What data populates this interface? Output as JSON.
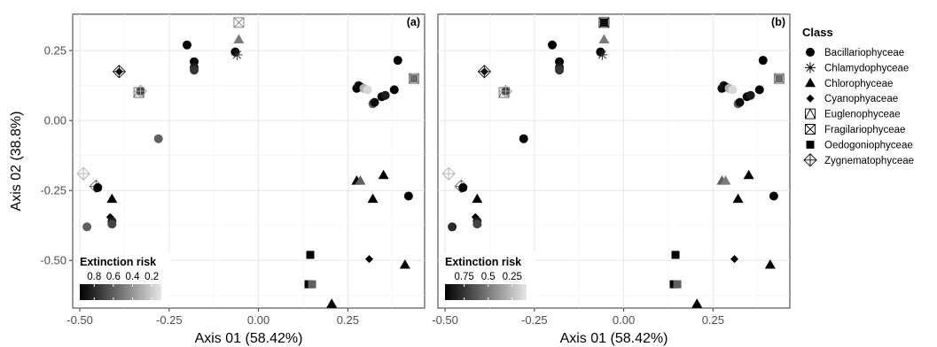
{
  "chart_data": [
    {
      "type": "scatter",
      "panel_label": "(a)",
      "xlabel": "Axis 01 (58.42%)",
      "ylabel": "Axis 02 (38.8%)",
      "xlim": [
        -0.52,
        0.465
      ],
      "ylim": [
        -0.67,
        0.38
      ],
      "x_ticks": [
        -0.5,
        -0.25,
        0.0,
        0.25
      ],
      "x_tick_labels": [
        "-0.50",
        "-0.25",
        "0.00",
        "0.25"
      ],
      "y_ticks": [
        0.25,
        0.0,
        -0.25,
        -0.5
      ],
      "y_tick_labels": [
        "0.25",
        "0.00",
        "-0.25",
        "-0.50"
      ],
      "grid": true,
      "colorbar": {
        "title": "Extinction risk",
        "tick_values": [
          0.8,
          0.6,
          0.4,
          0.2
        ],
        "tick_labels": [
          "0.8",
          "0.6",
          "0.4",
          "0.2"
        ],
        "range": [
          0.1,
          0.95
        ],
        "placement": "bottom-left"
      },
      "points": [
        {
          "x": -0.2,
          "y": 0.27,
          "shape": "circle",
          "risk": 0.95
        },
        {
          "x": -0.18,
          "y": 0.21,
          "shape": "circle",
          "risk": 0.95
        },
        {
          "x": -0.18,
          "y": 0.19,
          "shape": "circle",
          "risk": 0.85
        },
        {
          "x": -0.18,
          "y": 0.18,
          "shape": "circle",
          "risk": 0.75
        },
        {
          "x": -0.065,
          "y": 0.245,
          "shape": "circle",
          "risk": 0.95
        },
        {
          "x": -0.06,
          "y": 0.235,
          "shape": "asterisk",
          "risk": 0.8
        },
        {
          "x": -0.055,
          "y": 0.29,
          "shape": "triangle",
          "risk": 0.5
        },
        {
          "x": -0.055,
          "y": 0.35,
          "shape": "fragsquare",
          "risk": 0.5
        },
        {
          "x": -0.39,
          "y": 0.175,
          "shape": "diamond",
          "risk": 0.9
        },
        {
          "x": -0.39,
          "y": 0.175,
          "shape": "zygdiamond",
          "risk": 0.9
        },
        {
          "x": -0.335,
          "y": 0.1,
          "shape": "eugtriangle",
          "risk": 0.6
        },
        {
          "x": -0.33,
          "y": 0.105,
          "shape": "square",
          "risk": 0.7
        },
        {
          "x": -0.33,
          "y": 0.105,
          "shape": "zygdiamond",
          "risk": 0.3
        },
        {
          "x": -0.28,
          "y": -0.065,
          "shape": "circle",
          "risk": 0.6
        },
        {
          "x": -0.49,
          "y": -0.19,
          "shape": "zygdiamond",
          "risk": 0.3
        },
        {
          "x": -0.455,
          "y": -0.235,
          "shape": "zygdiamond",
          "risk": 0.6
        },
        {
          "x": -0.45,
          "y": -0.24,
          "shape": "circle",
          "risk": 0.95
        },
        {
          "x": -0.48,
          "y": -0.38,
          "shape": "circle",
          "risk": 0.6
        },
        {
          "x": -0.41,
          "y": -0.28,
          "shape": "triangle",
          "risk": 0.95
        },
        {
          "x": -0.415,
          "y": -0.345,
          "shape": "diamond",
          "risk": 0.95
        },
        {
          "x": -0.41,
          "y": -0.36,
          "shape": "circle",
          "risk": 0.85
        },
        {
          "x": -0.41,
          "y": -0.37,
          "shape": "circle",
          "risk": 0.7
        },
        {
          "x": 0.275,
          "y": 0.115,
          "shape": "circle",
          "risk": 0.95
        },
        {
          "x": 0.28,
          "y": 0.125,
          "shape": "circle",
          "risk": 0.85
        },
        {
          "x": 0.285,
          "y": 0.12,
          "shape": "circle",
          "risk": 0.95
        },
        {
          "x": 0.295,
          "y": 0.115,
          "shape": "circle",
          "risk": 0.3
        },
        {
          "x": 0.305,
          "y": 0.11,
          "shape": "circle",
          "risk": 0.15
        },
        {
          "x": 0.32,
          "y": 0.06,
          "shape": "circle",
          "risk": 0.6
        },
        {
          "x": 0.325,
          "y": 0.065,
          "shape": "circle",
          "risk": 0.9
        },
        {
          "x": 0.345,
          "y": 0.085,
          "shape": "circle",
          "risk": 0.95
        },
        {
          "x": 0.355,
          "y": 0.09,
          "shape": "circle",
          "risk": 0.85
        },
        {
          "x": 0.38,
          "y": 0.11,
          "shape": "circle",
          "risk": 0.95
        },
        {
          "x": 0.39,
          "y": 0.215,
          "shape": "circle",
          "risk": 0.95
        },
        {
          "x": 0.435,
          "y": 0.15,
          "shape": "square",
          "risk": 0.55
        },
        {
          "x": 0.435,
          "y": 0.15,
          "shape": "fragsquare",
          "risk": 0.55
        },
        {
          "x": 0.275,
          "y": -0.215,
          "shape": "triangle",
          "risk": 0.95
        },
        {
          "x": 0.285,
          "y": -0.215,
          "shape": "triangle",
          "risk": 0.6
        },
        {
          "x": 0.32,
          "y": -0.28,
          "shape": "triangle",
          "risk": 0.95
        },
        {
          "x": 0.35,
          "y": -0.195,
          "shape": "triangle",
          "risk": 0.95
        },
        {
          "x": 0.42,
          "y": -0.27,
          "shape": "circle",
          "risk": 0.95
        },
        {
          "x": 0.31,
          "y": -0.495,
          "shape": "diamond",
          "risk": 0.95
        },
        {
          "x": 0.41,
          "y": -0.515,
          "shape": "triangle",
          "risk": 0.95
        },
        {
          "x": 0.145,
          "y": -0.48,
          "shape": "square",
          "risk": 0.95
        },
        {
          "x": 0.14,
          "y": -0.585,
          "shape": "square",
          "risk": 0.95
        },
        {
          "x": 0.15,
          "y": -0.585,
          "shape": "square",
          "risk": 0.6
        },
        {
          "x": 0.205,
          "y": -0.655,
          "shape": "triangle",
          "risk": 0.95
        }
      ]
    },
    {
      "type": "scatter",
      "panel_label": "(b)",
      "xlabel": "Axis 01 (58.42%)",
      "ylabel": "",
      "xlim": [
        -0.52,
        0.465
      ],
      "ylim": [
        -0.67,
        0.38
      ],
      "x_ticks": [
        -0.5,
        -0.25,
        0.0,
        0.25
      ],
      "x_tick_labels": [
        "-0.50",
        "-0.25",
        "0.00",
        "0.25"
      ],
      "y_ticks": [],
      "y_tick_labels": [],
      "grid": true,
      "colorbar": {
        "title": "Extinction risk",
        "tick_values": [
          0.75,
          0.5,
          0.25
        ],
        "tick_labels": [
          "0.75",
          "0.5",
          "0.25"
        ],
        "range": [
          0.1,
          0.95
        ],
        "placement": "bottom-left"
      },
      "points": [
        {
          "x": -0.2,
          "y": 0.27,
          "shape": "circle",
          "risk": 0.95
        },
        {
          "x": -0.18,
          "y": 0.21,
          "shape": "circle",
          "risk": 0.95
        },
        {
          "x": -0.18,
          "y": 0.19,
          "shape": "circle",
          "risk": 0.85
        },
        {
          "x": -0.18,
          "y": 0.18,
          "shape": "circle",
          "risk": 0.75
        },
        {
          "x": -0.065,
          "y": 0.245,
          "shape": "circle",
          "risk": 0.95
        },
        {
          "x": -0.06,
          "y": 0.235,
          "shape": "asterisk",
          "risk": 0.8
        },
        {
          "x": -0.055,
          "y": 0.29,
          "shape": "triangle",
          "risk": 0.5
        },
        {
          "x": -0.055,
          "y": 0.35,
          "shape": "square",
          "risk": 0.9
        },
        {
          "x": -0.055,
          "y": 0.35,
          "shape": "fragsquare",
          "risk": 0.9
        },
        {
          "x": -0.39,
          "y": 0.175,
          "shape": "diamond",
          "risk": 0.9
        },
        {
          "x": -0.39,
          "y": 0.175,
          "shape": "zygdiamond",
          "risk": 0.9
        },
        {
          "x": -0.335,
          "y": 0.1,
          "shape": "eugtriangle",
          "risk": 0.6
        },
        {
          "x": -0.33,
          "y": 0.105,
          "shape": "square",
          "risk": 0.7
        },
        {
          "x": -0.33,
          "y": 0.105,
          "shape": "zygdiamond",
          "risk": 0.3
        },
        {
          "x": -0.28,
          "y": -0.065,
          "shape": "circle",
          "risk": 0.95
        },
        {
          "x": -0.49,
          "y": -0.19,
          "shape": "zygdiamond",
          "risk": 0.3
        },
        {
          "x": -0.455,
          "y": -0.235,
          "shape": "zygdiamond",
          "risk": 0.6
        },
        {
          "x": -0.45,
          "y": -0.24,
          "shape": "circle",
          "risk": 0.95
        },
        {
          "x": -0.48,
          "y": -0.38,
          "shape": "circle",
          "risk": 0.8
        },
        {
          "x": -0.41,
          "y": -0.28,
          "shape": "triangle",
          "risk": 0.95
        },
        {
          "x": -0.415,
          "y": -0.345,
          "shape": "diamond",
          "risk": 0.95
        },
        {
          "x": -0.41,
          "y": -0.36,
          "shape": "circle",
          "risk": 0.85
        },
        {
          "x": -0.41,
          "y": -0.37,
          "shape": "circle",
          "risk": 0.7
        },
        {
          "x": 0.275,
          "y": 0.115,
          "shape": "circle",
          "risk": 0.95
        },
        {
          "x": 0.28,
          "y": 0.125,
          "shape": "circle",
          "risk": 0.85
        },
        {
          "x": 0.285,
          "y": 0.12,
          "shape": "circle",
          "risk": 0.95
        },
        {
          "x": 0.295,
          "y": 0.115,
          "shape": "circle",
          "risk": 0.3
        },
        {
          "x": 0.305,
          "y": 0.11,
          "shape": "circle",
          "risk": 0.15
        },
        {
          "x": 0.32,
          "y": 0.06,
          "shape": "circle",
          "risk": 0.6
        },
        {
          "x": 0.325,
          "y": 0.065,
          "shape": "circle",
          "risk": 0.9
        },
        {
          "x": 0.345,
          "y": 0.085,
          "shape": "circle",
          "risk": 0.95
        },
        {
          "x": 0.355,
          "y": 0.09,
          "shape": "circle",
          "risk": 0.85
        },
        {
          "x": 0.38,
          "y": 0.11,
          "shape": "circle",
          "risk": 0.95
        },
        {
          "x": 0.39,
          "y": 0.215,
          "shape": "circle",
          "risk": 0.95
        },
        {
          "x": 0.435,
          "y": 0.15,
          "shape": "square",
          "risk": 0.55
        },
        {
          "x": 0.435,
          "y": 0.15,
          "shape": "fragsquare",
          "risk": 0.55
        },
        {
          "x": 0.275,
          "y": -0.215,
          "shape": "triangle",
          "risk": 0.6
        },
        {
          "x": 0.285,
          "y": -0.215,
          "shape": "triangle",
          "risk": 0.5
        },
        {
          "x": 0.32,
          "y": -0.28,
          "shape": "triangle",
          "risk": 0.95
        },
        {
          "x": 0.35,
          "y": -0.195,
          "shape": "triangle",
          "risk": 0.95
        },
        {
          "x": 0.42,
          "y": -0.27,
          "shape": "circle",
          "risk": 0.95
        },
        {
          "x": 0.31,
          "y": -0.495,
          "shape": "diamond",
          "risk": 0.95
        },
        {
          "x": 0.41,
          "y": -0.515,
          "shape": "triangle",
          "risk": 0.95
        },
        {
          "x": 0.145,
          "y": -0.48,
          "shape": "square",
          "risk": 0.95
        },
        {
          "x": 0.14,
          "y": -0.585,
          "shape": "square",
          "risk": 0.95
        },
        {
          "x": 0.15,
          "y": -0.585,
          "shape": "square",
          "risk": 0.6
        },
        {
          "x": 0.205,
          "y": -0.655,
          "shape": "triangle",
          "risk": 0.95
        }
      ]
    }
  ],
  "legend": {
    "title": "Class",
    "items": [
      {
        "label": "Bacillariophyceae",
        "shape": "circle"
      },
      {
        "label": "Chlamydophyceae",
        "shape": "asterisk"
      },
      {
        "label": "Chlorophyceae",
        "shape": "triangle"
      },
      {
        "label": "Cyanophyaceae",
        "shape": "diamond"
      },
      {
        "label": "Euglenophyceae",
        "shape": "eugtriangle"
      },
      {
        "label": "Fragilariophyceae",
        "shape": "fragsquare"
      },
      {
        "label": "Oedogoniophyceae",
        "shape": "square"
      },
      {
        "label": "Zygnematophyceae",
        "shape": "zygdiamond"
      }
    ]
  }
}
